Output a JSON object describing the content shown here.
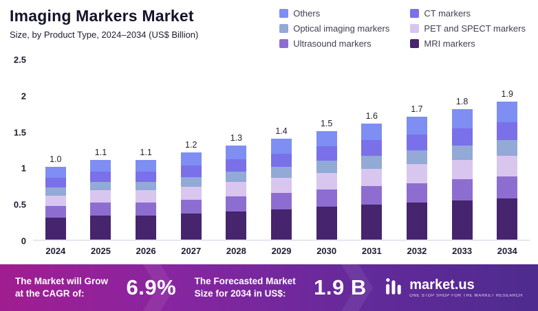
{
  "header": {
    "title": "Imaging Markers Market",
    "subtitle": "Size, by Product Type, 2024–2034 (US$ Billion)"
  },
  "legend": [
    {
      "label": "Others",
      "color": "#7e8ef2"
    },
    {
      "label": "CT markers",
      "color": "#7a70ea"
    },
    {
      "label": "Optical imaging markers",
      "color": "#93a9d6"
    },
    {
      "label": "PET and SPECT markers",
      "color": "#d9c6ef"
    },
    {
      "label": "Ultrasound markers",
      "color": "#8d6ed0"
    },
    {
      "label": "MRI markers",
      "color": "#46246e"
    }
  ],
  "chart_data": {
    "type": "bar",
    "stacked": true,
    "title": "Imaging Markers Market",
    "xlabel": "",
    "ylabel": "US$ Billion",
    "ylim": [
      0,
      2.5
    ],
    "yticks": [
      "0",
      "0.5",
      "1",
      "1.5",
      "2",
      "2.5"
    ],
    "grid": false,
    "legend_position": "top-right",
    "categories": [
      "2024",
      "2025",
      "2026",
      "2027",
      "2028",
      "2029",
      "2030",
      "2031",
      "2032",
      "2033",
      "2034"
    ],
    "totals": [
      "1.0",
      "1.1",
      "1.1",
      "1.2",
      "1.3",
      "1.4",
      "1.5",
      "1.6",
      "1.7",
      "1.8",
      "1.9"
    ],
    "series": [
      {
        "name": "MRI markers",
        "values": [
          0.3,
          0.33,
          0.33,
          0.36,
          0.39,
          0.42,
          0.45,
          0.48,
          0.51,
          0.54,
          0.57
        ]
      },
      {
        "name": "Ultrasound markers",
        "values": [
          0.16,
          0.18,
          0.18,
          0.19,
          0.21,
          0.22,
          0.24,
          0.26,
          0.27,
          0.29,
          0.3
        ]
      },
      {
        "name": "PET and SPECT markers",
        "values": [
          0.15,
          0.17,
          0.17,
          0.18,
          0.2,
          0.21,
          0.23,
          0.24,
          0.26,
          0.27,
          0.29
        ]
      },
      {
        "name": "Optical imaging markers",
        "values": [
          0.11,
          0.12,
          0.12,
          0.13,
          0.14,
          0.15,
          0.17,
          0.18,
          0.19,
          0.2,
          0.21
        ]
      },
      {
        "name": "CT markers",
        "values": [
          0.13,
          0.14,
          0.14,
          0.16,
          0.17,
          0.18,
          0.2,
          0.21,
          0.22,
          0.23,
          0.25
        ]
      },
      {
        "name": "Others",
        "values": [
          0.15,
          0.16,
          0.16,
          0.18,
          0.19,
          0.21,
          0.21,
          0.23,
          0.25,
          0.27,
          0.28
        ]
      }
    ]
  },
  "banner": {
    "cagr_label": "The Market will Grow\nat the CAGR of:",
    "cagr_value": "6.9%",
    "forecast_label": "The Forecasted Market\nSize for 2034 in US$:",
    "forecast_value": "1.9 B",
    "brand": "market.us",
    "tagline": "ONE STOP SHOP FOR THE MARKET RESEARCH"
  }
}
